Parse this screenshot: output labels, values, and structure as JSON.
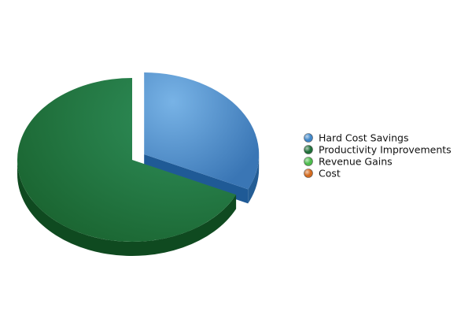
{
  "chart_data": {
    "type": "pie",
    "title": "",
    "series": [
      {
        "name": "Hard Cost Savings",
        "value": 32,
        "color": "#3f86c8"
      },
      {
        "name": "Productivity Improvements",
        "value": 68,
        "color": "#1f6f38"
      },
      {
        "name": "Revenue Gains",
        "value": 0,
        "color": "#4cbb4c"
      },
      {
        "name": "Cost",
        "value": 0,
        "color": "#d2691e"
      }
    ],
    "legend_placement": "right",
    "three_d": true,
    "exploded_slice": "Hard Cost Savings"
  }
}
